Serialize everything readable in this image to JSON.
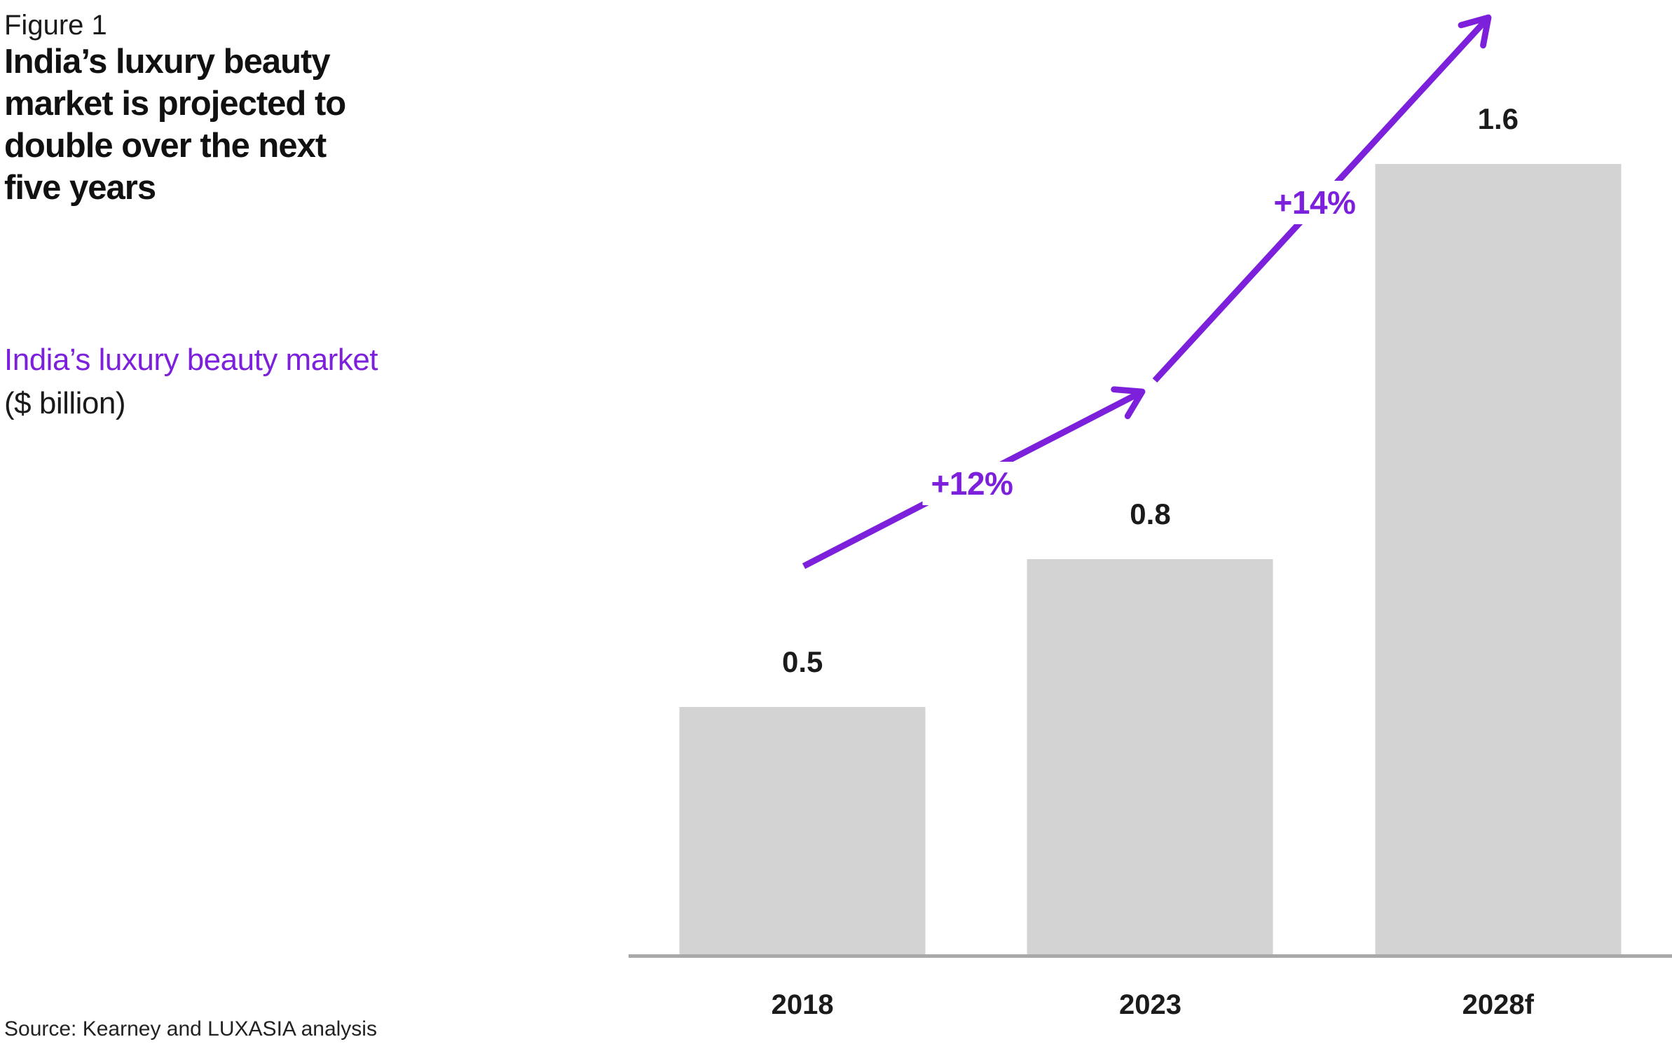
{
  "figure": {
    "label": "Figure 1",
    "title_lines": [
      "India’s luxury beauty",
      "market is projected to",
      "double over the next",
      "five years"
    ],
    "subtitle": "India’s luxury beauty market",
    "unit": "($ billion)",
    "source": "Source: Kearney and LUXASIA analysis"
  },
  "colors": {
    "purple": "#7C20DB",
    "bar_gray": "#D3D3D3",
    "axis_gray": "#A9A9A9",
    "text_dark": "#1A1A1A"
  },
  "chart_data": {
    "type": "bar",
    "title": "India’s luxury beauty market",
    "ylabel": "$ billion",
    "categories": [
      "2018",
      "2023",
      "2028f"
    ],
    "values": [
      0.5,
      0.8,
      1.6
    ],
    "value_labels": [
      "0.5",
      "0.8",
      "1.6"
    ],
    "growth_annotations": [
      {
        "label": "+12%",
        "from": "2018",
        "to": "2023"
      },
      {
        "label": "+14%",
        "from": "2023",
        "to": "2028f"
      }
    ],
    "ylim": [
      0,
      1.9
    ],
    "grid": false,
    "legend": false,
    "bar_color": "#D3D3D3",
    "annotation_color": "#7C20DB"
  }
}
